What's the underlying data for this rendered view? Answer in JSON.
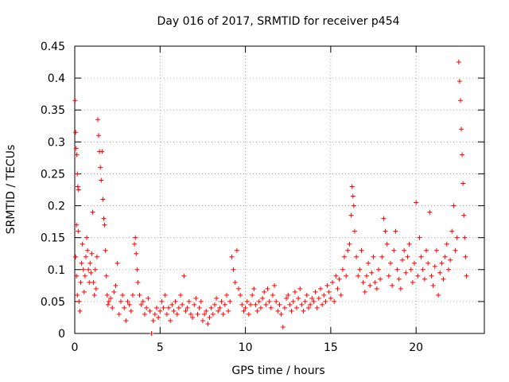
{
  "chart_data": {
    "type": "scatter",
    "title": "Day 016 of 2017, SRMTID for receiver p454",
    "xlabel": "GPS time / hours",
    "ylabel": "SRMTID / TECUs",
    "xlim": [
      0,
      24
    ],
    "ylim": [
      0,
      0.45
    ],
    "x_ticks": [
      0,
      5,
      10,
      15,
      20
    ],
    "x_tick_labels": [
      "0",
      "5",
      "10",
      "15",
      "20"
    ],
    "y_ticks": [
      0,
      0.05,
      0.1,
      0.15,
      0.2,
      0.25,
      0.3,
      0.35,
      0.4,
      0.45
    ],
    "y_tick_labels": [
      "0",
      "0.05",
      "0.1",
      "0.15",
      "0.2",
      "0.25",
      "0.3",
      "0.35",
      "0.4",
      "0.45"
    ],
    "grid": true,
    "marker": "+",
    "series": [
      {
        "name": "SRMTID p454",
        "color": "#ff0000",
        "points": [
          [
            0.02,
            0.365
          ],
          [
            0.05,
            0.315
          ],
          [
            0.08,
            0.29
          ],
          [
            0.12,
            0.28
          ],
          [
            0.15,
            0.25
          ],
          [
            0.18,
            0.23
          ],
          [
            0.22,
            0.225
          ],
          [
            0.1,
            0.17
          ],
          [
            0.2,
            0.16
          ],
          [
            0.05,
            0.12
          ],
          [
            0.1,
            0.09
          ],
          [
            0.15,
            0.06
          ],
          [
            0.25,
            0.05
          ],
          [
            0.3,
            0.035
          ],
          [
            0.35,
            0.08
          ],
          [
            0.4,
            0.11
          ],
          [
            0.45,
            0.14
          ],
          [
            0.5,
            0.1
          ],
          [
            0.55,
            0.065
          ],
          [
            0.6,
            0.09
          ],
          [
            0.65,
            0.12
          ],
          [
            0.7,
            0.15
          ],
          [
            0.75,
            0.13
          ],
          [
            0.8,
            0.1
          ],
          [
            0.85,
            0.08
          ],
          [
            0.9,
            0.11
          ],
          [
            0.95,
            0.095
          ],
          [
            1.0,
            0.125
          ],
          [
            1.05,
            0.19
          ],
          [
            1.1,
            0.08
          ],
          [
            1.15,
            0.06
          ],
          [
            1.2,
            0.1
          ],
          [
            1.25,
            0.07
          ],
          [
            1.3,
            0.12
          ],
          [
            1.35,
            0.335
          ],
          [
            1.4,
            0.31
          ],
          [
            1.45,
            0.285
          ],
          [
            1.5,
            0.26
          ],
          [
            1.55,
            0.24
          ],
          [
            1.6,
            0.285
          ],
          [
            1.65,
            0.21
          ],
          [
            1.7,
            0.18
          ],
          [
            1.75,
            0.17
          ],
          [
            1.8,
            0.13
          ],
          [
            1.85,
            0.09
          ],
          [
            1.9,
            0.06
          ],
          [
            1.95,
            0.045
          ],
          [
            2.0,
            0.05
          ],
          [
            2.1,
            0.055
          ],
          [
            2.2,
            0.04
          ],
          [
            2.3,
            0.065
          ],
          [
            2.4,
            0.075
          ],
          [
            2.5,
            0.11
          ],
          [
            2.6,
            0.03
          ],
          [
            2.7,
            0.05
          ],
          [
            2.8,
            0.06
          ],
          [
            2.9,
            0.04
          ],
          [
            3.0,
            0.02
          ],
          [
            3.1,
            0.05
          ],
          [
            3.2,
            0.045
          ],
          [
            3.3,
            0.035
          ],
          [
            3.4,
            0.06
          ],
          [
            3.5,
            0.14
          ],
          [
            3.55,
            0.15
          ],
          [
            3.6,
            0.125
          ],
          [
            3.65,
            0.1
          ],
          [
            3.7,
            0.08
          ],
          [
            3.8,
            0.06
          ],
          [
            3.9,
            0.045
          ],
          [
            4.0,
            0.05
          ],
          [
            4.1,
            0.03
          ],
          [
            4.2,
            0.04
          ],
          [
            4.3,
            0.055
          ],
          [
            4.4,
            0.035
          ],
          [
            4.5,
            0.0
          ],
          [
            4.6,
            0.02
          ],
          [
            4.7,
            0.03
          ],
          [
            4.8,
            0.04
          ],
          [
            4.9,
            0.025
          ],
          [
            5.0,
            0.035
          ],
          [
            5.1,
            0.05
          ],
          [
            5.2,
            0.04
          ],
          [
            5.3,
            0.06
          ],
          [
            5.4,
            0.03
          ],
          [
            5.5,
            0.04
          ],
          [
            5.6,
            0.02
          ],
          [
            5.7,
            0.045
          ],
          [
            5.8,
            0.035
          ],
          [
            5.9,
            0.05
          ],
          [
            6.0,
            0.03
          ],
          [
            6.1,
            0.04
          ],
          [
            6.2,
            0.06
          ],
          [
            6.3,
            0.045
          ],
          [
            6.4,
            0.09
          ],
          [
            6.5,
            0.035
          ],
          [
            6.6,
            0.04
          ],
          [
            6.7,
            0.05
          ],
          [
            6.8,
            0.03
          ],
          [
            6.9,
            0.025
          ],
          [
            7.0,
            0.045
          ],
          [
            7.1,
            0.055
          ],
          [
            7.2,
            0.03
          ],
          [
            7.3,
            0.04
          ],
          [
            7.4,
            0.05
          ],
          [
            7.5,
            0.02
          ],
          [
            7.6,
            0.03
          ],
          [
            7.7,
            0.035
          ],
          [
            7.8,
            0.015
          ],
          [
            7.9,
            0.025
          ],
          [
            8.0,
            0.04
          ],
          [
            8.1,
            0.03
          ],
          [
            8.2,
            0.045
          ],
          [
            8.3,
            0.055
          ],
          [
            8.4,
            0.035
          ],
          [
            8.5,
            0.04
          ],
          [
            8.6,
            0.05
          ],
          [
            8.7,
            0.03
          ],
          [
            8.8,
            0.045
          ],
          [
            8.9,
            0.06
          ],
          [
            9.0,
            0.035
          ],
          [
            9.1,
            0.05
          ],
          [
            9.2,
            0.12
          ],
          [
            9.3,
            0.1
          ],
          [
            9.4,
            0.08
          ],
          [
            9.5,
            0.13
          ],
          [
            9.6,
            0.07
          ],
          [
            9.7,
            0.06
          ],
          [
            9.8,
            0.045
          ],
          [
            9.9,
            0.035
          ],
          [
            10.0,
            0.04
          ],
          [
            10.1,
            0.05
          ],
          [
            10.2,
            0.03
          ],
          [
            10.3,
            0.045
          ],
          [
            10.4,
            0.06
          ],
          [
            10.5,
            0.07
          ],
          [
            10.6,
            0.045
          ],
          [
            10.7,
            0.035
          ],
          [
            10.8,
            0.05
          ],
          [
            10.9,
            0.04
          ],
          [
            11.0,
            0.055
          ],
          [
            11.1,
            0.065
          ],
          [
            11.2,
            0.045
          ],
          [
            11.3,
            0.07
          ],
          [
            11.4,
            0.05
          ],
          [
            11.5,
            0.04
          ],
          [
            11.6,
            0.06
          ],
          [
            11.7,
            0.075
          ],
          [
            11.8,
            0.05
          ],
          [
            11.9,
            0.035
          ],
          [
            12.0,
            0.045
          ],
          [
            12.1,
            0.03
          ],
          [
            12.2,
            0.01
          ],
          [
            12.3,
            0.04
          ],
          [
            12.4,
            0.055
          ],
          [
            12.5,
            0.06
          ],
          [
            12.6,
            0.045
          ],
          [
            12.7,
            0.035
          ],
          [
            12.8,
            0.05
          ],
          [
            12.9,
            0.065
          ],
          [
            13.0,
            0.04
          ],
          [
            13.1,
            0.055
          ],
          [
            13.2,
            0.07
          ],
          [
            13.3,
            0.045
          ],
          [
            13.4,
            0.035
          ],
          [
            13.5,
            0.05
          ],
          [
            13.6,
            0.06
          ],
          [
            13.7,
            0.04
          ],
          [
            13.8,
            0.045
          ],
          [
            13.9,
            0.055
          ],
          [
            14.0,
            0.05
          ],
          [
            14.1,
            0.065
          ],
          [
            14.2,
            0.04
          ],
          [
            14.3,
            0.055
          ],
          [
            14.4,
            0.07
          ],
          [
            14.5,
            0.045
          ],
          [
            14.6,
            0.06
          ],
          [
            14.7,
            0.05
          ],
          [
            14.8,
            0.075
          ],
          [
            14.9,
            0.065
          ],
          [
            15.0,
            0.055
          ],
          [
            15.1,
            0.08
          ],
          [
            15.2,
            0.05
          ],
          [
            15.3,
            0.09
          ],
          [
            15.4,
            0.07
          ],
          [
            15.5,
            0.085
          ],
          [
            15.6,
            0.06
          ],
          [
            15.7,
            0.1
          ],
          [
            15.8,
            0.12
          ],
          [
            15.9,
            0.09
          ],
          [
            16.0,
            0.13
          ],
          [
            16.1,
            0.14
          ],
          [
            16.2,
            0.185
          ],
          [
            16.25,
            0.23
          ],
          [
            16.3,
            0.215
          ],
          [
            16.35,
            0.2
          ],
          [
            16.4,
            0.16
          ],
          [
            16.5,
            0.12
          ],
          [
            16.6,
            0.09
          ],
          [
            16.7,
            0.1
          ],
          [
            16.8,
            0.13
          ],
          [
            16.9,
            0.08
          ],
          [
            17.0,
            0.065
          ],
          [
            17.1,
            0.09
          ],
          [
            17.2,
            0.11
          ],
          [
            17.3,
            0.075
          ],
          [
            17.4,
            0.095
          ],
          [
            17.5,
            0.12
          ],
          [
            17.6,
            0.08
          ],
          [
            17.7,
            0.07
          ],
          [
            17.8,
            0.1
          ],
          [
            17.9,
            0.085
          ],
          [
            18.0,
            0.12
          ],
          [
            18.1,
            0.18
          ],
          [
            18.2,
            0.16
          ],
          [
            18.3,
            0.14
          ],
          [
            18.4,
            0.09
          ],
          [
            18.5,
            0.11
          ],
          [
            18.6,
            0.075
          ],
          [
            18.7,
            0.13
          ],
          [
            18.8,
            0.16
          ],
          [
            18.9,
            0.1
          ],
          [
            19.0,
            0.085
          ],
          [
            19.1,
            0.07
          ],
          [
            19.2,
            0.115
          ],
          [
            19.3,
            0.13
          ],
          [
            19.4,
            0.095
          ],
          [
            19.5,
            0.12
          ],
          [
            19.6,
            0.14
          ],
          [
            19.7,
            0.1
          ],
          [
            19.8,
            0.08
          ],
          [
            19.9,
            0.11
          ],
          [
            20.0,
            0.205
          ],
          [
            20.1,
            0.09
          ],
          [
            20.2,
            0.15
          ],
          [
            20.3,
            0.12
          ],
          [
            20.4,
            0.1
          ],
          [
            20.5,
            0.085
          ],
          [
            20.6,
            0.13
          ],
          [
            20.7,
            0.11
          ],
          [
            20.8,
            0.19
          ],
          [
            20.9,
            0.09
          ],
          [
            21.0,
            0.075
          ],
          [
            21.1,
            0.105
          ],
          [
            21.2,
            0.13
          ],
          [
            21.3,
            0.06
          ],
          [
            21.4,
            0.095
          ],
          [
            21.5,
            0.11
          ],
          [
            21.6,
            0.085
          ],
          [
            21.7,
            0.12
          ],
          [
            21.8,
            0.14
          ],
          [
            21.9,
            0.1
          ],
          [
            22.0,
            0.115
          ],
          [
            22.1,
            0.16
          ],
          [
            22.2,
            0.2
          ],
          [
            22.3,
            0.13
          ],
          [
            22.4,
            0.15
          ],
          [
            22.5,
            0.425
          ],
          [
            22.55,
            0.395
          ],
          [
            22.6,
            0.365
          ],
          [
            22.65,
            0.32
          ],
          [
            22.7,
            0.28
          ],
          [
            22.75,
            0.235
          ],
          [
            22.8,
            0.185
          ],
          [
            22.85,
            0.15
          ],
          [
            22.9,
            0.12
          ],
          [
            22.95,
            0.09
          ]
        ]
      }
    ]
  }
}
